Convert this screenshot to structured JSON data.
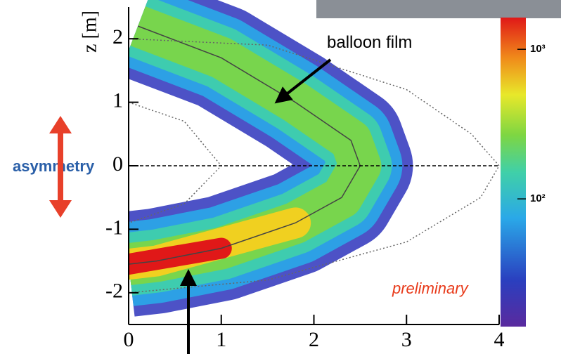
{
  "chart_data": {
    "type": "density",
    "y_label": "z [m]",
    "xlim": [
      0,
      4
    ],
    "xticks": [
      0,
      1,
      2,
      3,
      4
    ],
    "ylim": [
      -2.5,
      2.5
    ],
    "yticks": [
      -2,
      -1,
      0,
      1,
      2
    ],
    "colorbar": {
      "log": true,
      "clim": [
        14,
        1630
      ],
      "ticks": [
        {
          "value": 100,
          "label": "10²"
        },
        {
          "value": 1000,
          "label": "10³"
        }
      ]
    },
    "reference_line": {
      "y": 0,
      "style": "dashed"
    },
    "series": [
      {
        "style": "solid",
        "x": [
          0.1,
          1,
          1.8,
          2.4,
          2.5,
          2.3,
          1.8,
          1,
          0.3,
          0
        ],
        "y": [
          2.2,
          1.7,
          1,
          0.4,
          0,
          -0.5,
          -0.9,
          -1.3,
          -1.5,
          -1.55
        ]
      },
      {
        "style": "dotted",
        "x": [
          0,
          1.5,
          3,
          3.7,
          4,
          3.8,
          3,
          1.5,
          0
        ],
        "y": [
          2,
          1.9,
          1.2,
          0.5,
          0,
          -0.5,
          -1.2,
          -1.8,
          -2
        ]
      },
      {
        "style": "dotted",
        "x": [
          0,
          0.6,
          1,
          0.6,
          0
        ],
        "y": [
          1,
          0.7,
          0,
          -0.6,
          -0.9
        ]
      }
    ],
    "annotations": [
      "balloon film",
      "asymmetry",
      "preliminary"
    ]
  }
}
